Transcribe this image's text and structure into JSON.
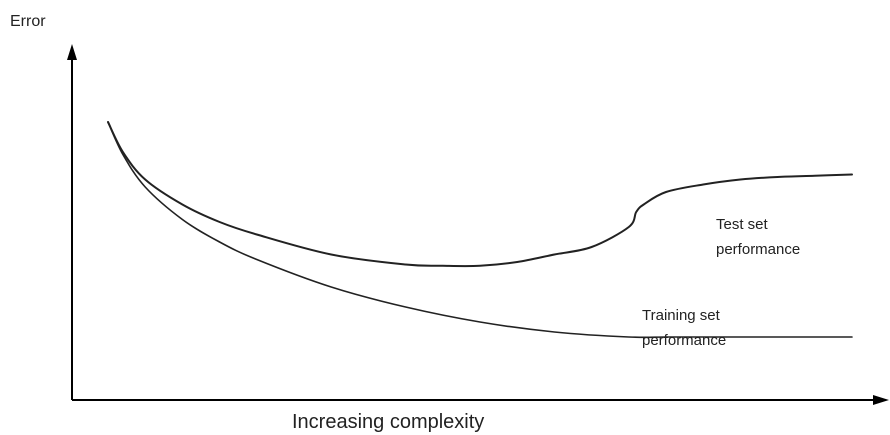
{
  "chart_data": {
    "type": "line",
    "ylabel": "Error",
    "xlabel": "Increasing complexity",
    "xlim": [
      0,
      100
    ],
    "ylim": [
      0,
      100
    ],
    "grid": false,
    "series": [
      {
        "name": "Test set performance",
        "label_lines": [
          "Test set",
          "performance"
        ],
        "x": [
          0,
          2,
          5,
          10,
          15,
          20,
          30,
          40,
          45,
          50,
          55,
          60,
          65,
          70,
          71,
          72,
          75,
          80,
          85,
          90,
          95,
          100
        ],
        "y": [
          96,
          84,
          73,
          63,
          56,
          51,
          43,
          39,
          38.5,
          38.5,
          40,
          43,
          46,
          54,
          60,
          63,
          68,
          71,
          73,
          74,
          74.5,
          75
        ]
      },
      {
        "name": "Training set performance",
        "label_lines": [
          "Training set",
          "performance"
        ],
        "x": [
          0,
          2,
          5,
          10,
          15,
          20,
          30,
          40,
          50,
          60,
          70,
          75,
          80,
          85,
          90,
          95,
          100
        ],
        "y": [
          96,
          83,
          70,
          57,
          48,
          41,
          30,
          22,
          16,
          12,
          10,
          10,
          10,
          10,
          10,
          10,
          10
        ]
      }
    ]
  }
}
